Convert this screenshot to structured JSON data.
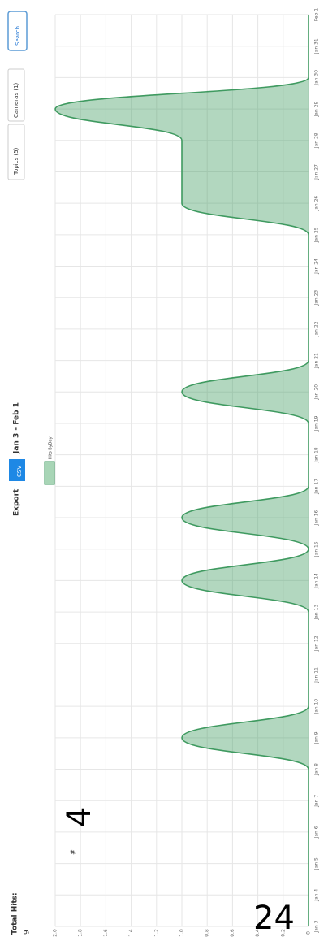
{
  "summary": {
    "label": "Total Hits:",
    "value": 9
  },
  "toolbar": {
    "export": "Export",
    "csv": "CSV",
    "range": "Jan 3 - Feb 1",
    "topics": "Topics (5)",
    "cameras": "Cameras (1)",
    "search": "Search"
  },
  "chart_data": {
    "type": "area",
    "ylabel": "#",
    "annotations": [
      "4",
      "24"
    ],
    "categories": [
      "Jan 3",
      "Jan 4",
      "Jan 5",
      "Jan 6",
      "Jan 7",
      "Jan 8",
      "Jan 9",
      "Jan 10",
      "Jan 11",
      "Jan 12",
      "Jan 13",
      "Jan 14",
      "Jan 15",
      "Jan 16",
      "Jan 17",
      "Jan 18",
      "Jan 19",
      "Jan 20",
      "Jan 21",
      "Jan 22",
      "Jan 23",
      "Jan 24",
      "Jan 25",
      "Jan 26",
      "Jan 27",
      "Jan 28",
      "Jan 29",
      "Jan 30",
      "Jan 31",
      "Feb 1"
    ],
    "series": [
      {
        "name": "Hits ByDay",
        "color": "#3f9a60",
        "values": [
          0,
          0,
          0,
          0,
          0,
          0,
          1,
          0,
          0,
          0,
          0,
          1,
          0,
          1,
          0,
          0,
          0,
          1,
          0,
          0,
          0,
          0,
          0,
          1,
          1,
          1,
          2,
          0,
          0,
          0
        ]
      }
    ],
    "ylim": [
      0,
      2
    ],
    "yticks": [
      0,
      0.2,
      0.4,
      0.6,
      0.8,
      {
        "value": 1,
        "label": "1.0"
      },
      1.2,
      1.4,
      1.6,
      1.8,
      {
        "value": 2,
        "label": "2.0"
      }
    ],
    "grid": true
  }
}
